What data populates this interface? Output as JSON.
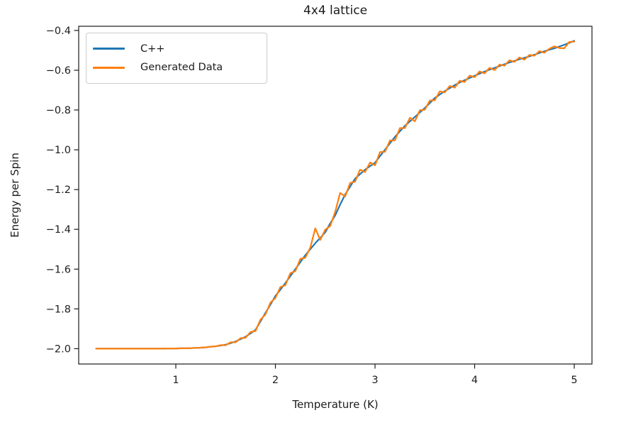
{
  "figure": {
    "title": "4x4 lattice",
    "xlabel": "Temperature (K)",
    "ylabel": "Energy per Spin"
  },
  "legend": {
    "entries": [
      {
        "label": "C++",
        "color": "#1f77b4"
      },
      {
        "label": "Generated Data",
        "color": "#ff7f0e"
      }
    ]
  },
  "colors": {
    "background": "#ffffff",
    "axes_and_text": "#1c1c1c",
    "legend_border": "#cccccc",
    "series_blue": "#1f77b4",
    "series_orange": "#ff7f0e"
  },
  "chart_data": {
    "type": "line",
    "title": "4x4 lattice",
    "xlabel": "Temperature (K)",
    "ylabel": "Energy per Spin",
    "xlim": [
      0.025,
      5.178
    ],
    "ylim": [
      -2.077,
      -0.379
    ],
    "grid": false,
    "legend_position": "upper left",
    "xticks": {
      "values": [
        1,
        2,
        3,
        4,
        5
      ],
      "labels": [
        "1",
        "2",
        "3",
        "4",
        "5"
      ]
    },
    "yticks": {
      "values": [
        -0.4,
        -0.6,
        -0.8,
        -1.0,
        -1.2,
        -1.4,
        -1.6,
        -1.8,
        -2.0
      ],
      "labels": [
        "−0.4",
        "−0.6",
        "−0.8",
        "−1.0",
        "−1.2",
        "−1.4",
        "−1.6",
        "−1.8",
        "−2.0"
      ]
    },
    "x": [
      0.2,
      0.25,
      0.3,
      0.35,
      0.4,
      0.45,
      0.5,
      0.55,
      0.6,
      0.65,
      0.7,
      0.75,
      0.8,
      0.85,
      0.9,
      0.95,
      1.0,
      1.05,
      1.1,
      1.15,
      1.2,
      1.25,
      1.3,
      1.35,
      1.4,
      1.45,
      1.5,
      1.55,
      1.6,
      1.65,
      1.7,
      1.75,
      1.8,
      1.85,
      1.9,
      1.95,
      2.0,
      2.05,
      2.1,
      2.15,
      2.2,
      2.25,
      2.3,
      2.35,
      2.4,
      2.45,
      2.5,
      2.55,
      2.6,
      2.65,
      2.7,
      2.75,
      2.8,
      2.85,
      2.9,
      2.95,
      3.0,
      3.05,
      3.1,
      3.15,
      3.2,
      3.25,
      3.3,
      3.35,
      3.4,
      3.45,
      3.5,
      3.55,
      3.6,
      3.65,
      3.7,
      3.75,
      3.8,
      3.85,
      3.9,
      3.95,
      4.0,
      4.05,
      4.1,
      4.15,
      4.2,
      4.25,
      4.3,
      4.35,
      4.4,
      4.45,
      4.5,
      4.55,
      4.6,
      4.65,
      4.7,
      4.75,
      4.8,
      4.85,
      4.9,
      4.95,
      5.0
    ],
    "series": [
      {
        "name": "C++",
        "color": "#1f77b4",
        "y": [
          -2.0,
          -2.0,
          -2.0,
          -2.0,
          -2.0,
          -2.0,
          -2.0,
          -2.0,
          -2.0,
          -2.0,
          -2.0,
          -2.0,
          -2.0,
          -2.0,
          -1.999,
          -1.999,
          -1.999,
          -1.998,
          -1.998,
          -1.997,
          -1.996,
          -1.995,
          -1.993,
          -1.99,
          -1.988,
          -1.984,
          -1.98,
          -1.972,
          -1.964,
          -1.952,
          -1.94,
          -1.923,
          -1.905,
          -1.863,
          -1.82,
          -1.778,
          -1.735,
          -1.703,
          -1.67,
          -1.635,
          -1.6,
          -1.565,
          -1.53,
          -1.5,
          -1.47,
          -1.443,
          -1.415,
          -1.37,
          -1.33,
          -1.275,
          -1.225,
          -1.185,
          -1.145,
          -1.122,
          -1.1,
          -1.082,
          -1.065,
          -1.032,
          -1.0,
          -0.967,
          -0.935,
          -0.907,
          -0.88,
          -0.857,
          -0.835,
          -0.812,
          -0.79,
          -0.765,
          -0.74,
          -0.722,
          -0.705,
          -0.69,
          -0.675,
          -0.662,
          -0.65,
          -0.639,
          -0.628,
          -0.617,
          -0.607,
          -0.597,
          -0.588,
          -0.579,
          -0.57,
          -0.561,
          -0.553,
          -0.545,
          -0.538,
          -0.53,
          -0.522,
          -0.513,
          -0.505,
          -0.497,
          -0.49,
          -0.481,
          -0.472,
          -0.462,
          -0.452
        ]
      },
      {
        "name": "Generated Data",
        "color": "#ff7f0e",
        "y": [
          -2.0,
          -2.0,
          -2.0,
          -2.0,
          -2.0,
          -2.0,
          -2.0,
          -2.0,
          -2.0,
          -2.0,
          -2.0,
          -2.0,
          -2.0,
          -2.0,
          -1.999,
          -1.999,
          -1.999,
          -1.998,
          -1.998,
          -1.997,
          -1.996,
          -1.995,
          -1.993,
          -1.99,
          -1.988,
          -1.982,
          -1.983,
          -1.968,
          -1.968,
          -1.947,
          -1.945,
          -1.916,
          -1.911,
          -1.854,
          -1.828,
          -1.768,
          -1.745,
          -1.69,
          -1.681,
          -1.62,
          -1.61,
          -1.548,
          -1.543,
          -1.492,
          -1.395,
          -1.453,
          -1.402,
          -1.383,
          -1.312,
          -1.217,
          -1.235,
          -1.167,
          -1.16,
          -1.1,
          -1.112,
          -1.064,
          -1.078,
          -1.012,
          -1.01,
          -0.953,
          -0.953,
          -0.891,
          -0.891,
          -0.839,
          -0.857,
          -0.801,
          -0.799,
          -0.752,
          -0.751,
          -0.706,
          -0.712,
          -0.679,
          -0.688,
          -0.653,
          -0.659,
          -0.627,
          -0.635,
          -0.606,
          -0.616,
          -0.588,
          -0.599,
          -0.572,
          -0.577,
          -0.55,
          -0.558,
          -0.536,
          -0.547,
          -0.523,
          -0.527,
          -0.504,
          -0.512,
          -0.492,
          -0.48,
          -0.488,
          -0.49,
          -0.458,
          -0.456
        ]
      }
    ]
  }
}
